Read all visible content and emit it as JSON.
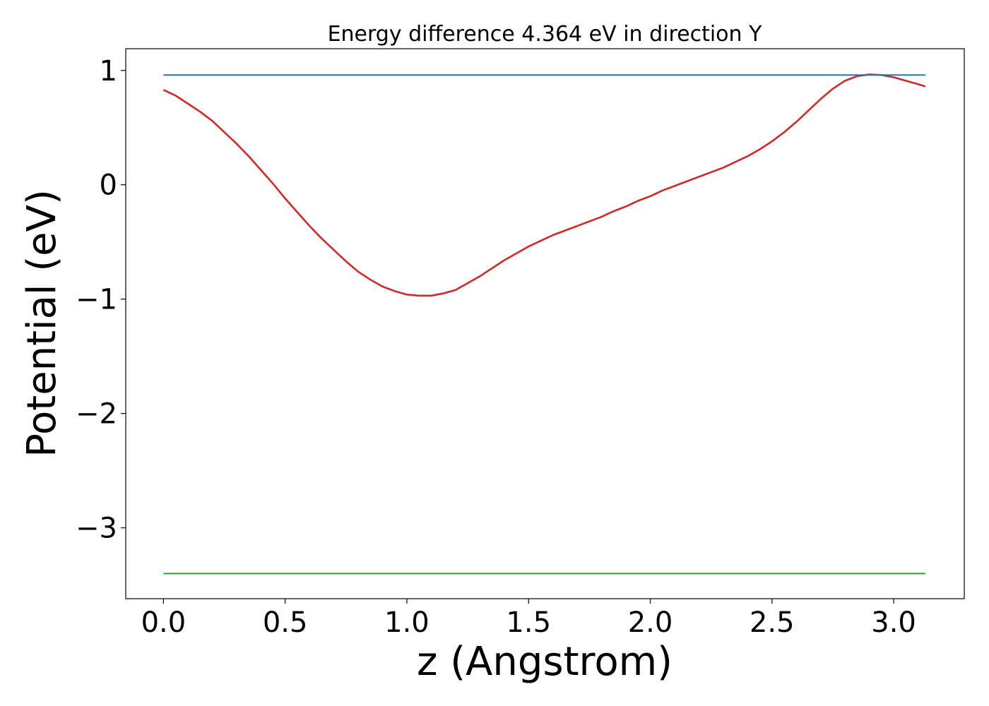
{
  "chart_data": {
    "type": "line",
    "title": "Energy difference 4.364 eV in direction Y",
    "xlabel": "z (Angstrom)",
    "ylabel": "Potential (eV)",
    "xlim": [
      -0.155,
      3.29
    ],
    "ylim": [
      -3.62,
      1.19
    ],
    "xticks": [
      0.0,
      0.5,
      1.0,
      1.5,
      2.0,
      2.5,
      3.0
    ],
    "xtick_labels": [
      "0.0",
      "0.5",
      "1.0",
      "1.5",
      "2.0",
      "2.5",
      "3.0"
    ],
    "yticks": [
      1,
      0,
      -1,
      -2,
      -3
    ],
    "ytick_labels": [
      "1",
      "0",
      "−1",
      "−2",
      "−3"
    ],
    "grid": false,
    "legend": null,
    "series": [
      {
        "color": "#d62728",
        "style": "solid",
        "x": [
          0.0,
          0.05,
          0.1,
          0.15,
          0.2,
          0.25,
          0.3,
          0.35,
          0.4,
          0.45,
          0.5,
          0.55,
          0.6,
          0.65,
          0.7,
          0.75,
          0.8,
          0.85,
          0.9,
          0.95,
          1.0,
          1.05,
          1.1,
          1.15,
          1.2,
          1.25,
          1.3,
          1.35,
          1.4,
          1.45,
          1.5,
          1.55,
          1.6,
          1.65,
          1.7,
          1.75,
          1.8,
          1.85,
          1.9,
          1.95,
          2.0,
          2.05,
          2.1,
          2.15,
          2.2,
          2.25,
          2.3,
          2.35,
          2.4,
          2.45,
          2.5,
          2.55,
          2.6,
          2.65,
          2.7,
          2.75,
          2.8,
          2.85,
          2.9,
          2.95,
          3.0,
          3.05,
          3.1,
          3.13
        ],
        "y": [
          0.83,
          0.78,
          0.71,
          0.64,
          0.56,
          0.46,
          0.36,
          0.25,
          0.13,
          0.01,
          -0.12,
          -0.24,
          -0.36,
          -0.47,
          -0.57,
          -0.67,
          -0.76,
          -0.83,
          -0.89,
          -0.93,
          -0.96,
          -0.97,
          -0.97,
          -0.95,
          -0.92,
          -0.86,
          -0.8,
          -0.73,
          -0.66,
          -0.6,
          -0.54,
          -0.49,
          -0.44,
          -0.4,
          -0.36,
          -0.32,
          -0.28,
          -0.23,
          -0.19,
          -0.14,
          -0.1,
          -0.05,
          -0.01,
          0.03,
          0.07,
          0.11,
          0.15,
          0.2,
          0.25,
          0.31,
          0.38,
          0.46,
          0.55,
          0.65,
          0.75,
          0.84,
          0.91,
          0.95,
          0.965,
          0.96,
          0.94,
          0.91,
          0.88,
          0.86
        ]
      },
      {
        "color": "#1f77b4",
        "style": "solid",
        "x": [
          0.0,
          3.13
        ],
        "y": [
          0.96,
          0.96
        ]
      },
      {
        "color": "#2ca02c",
        "style": "solid",
        "x": [
          0.0,
          3.13
        ],
        "y": [
          -3.4,
          -3.4
        ]
      }
    ]
  }
}
